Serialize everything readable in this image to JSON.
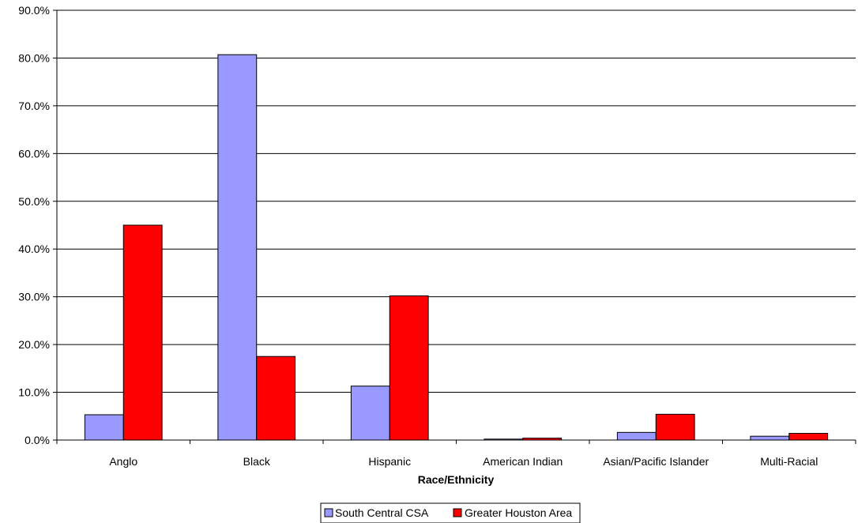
{
  "chart_data": {
    "type": "bar",
    "categories": [
      "Anglo",
      "Black",
      "Hispanic",
      "American Indian",
      "Asian/Pacific Islander",
      "Multi-Racial"
    ],
    "series": [
      {
        "name": "South Central CSA",
        "values": [
          5.3,
          80.7,
          11.3,
          0.2,
          1.6,
          0.8
        ],
        "color": "#9999ff"
      },
      {
        "name": "Greater Houston Area",
        "values": [
          45.0,
          17.5,
          30.2,
          0.4,
          5.4,
          1.4
        ],
        "color": "#ff0000"
      }
    ],
    "y_tick_labels": [
      "0.0%",
      "10.0%",
      "20.0%",
      "30.0%",
      "40.0%",
      "50.0%",
      "60.0%",
      "70.0%",
      "80.0%",
      "90.0%"
    ],
    "ylim": [
      0,
      90
    ],
    "xlabel": "Race/Ethnicity",
    "ylabel": "",
    "grid": true,
    "legend_position": "bottom"
  }
}
